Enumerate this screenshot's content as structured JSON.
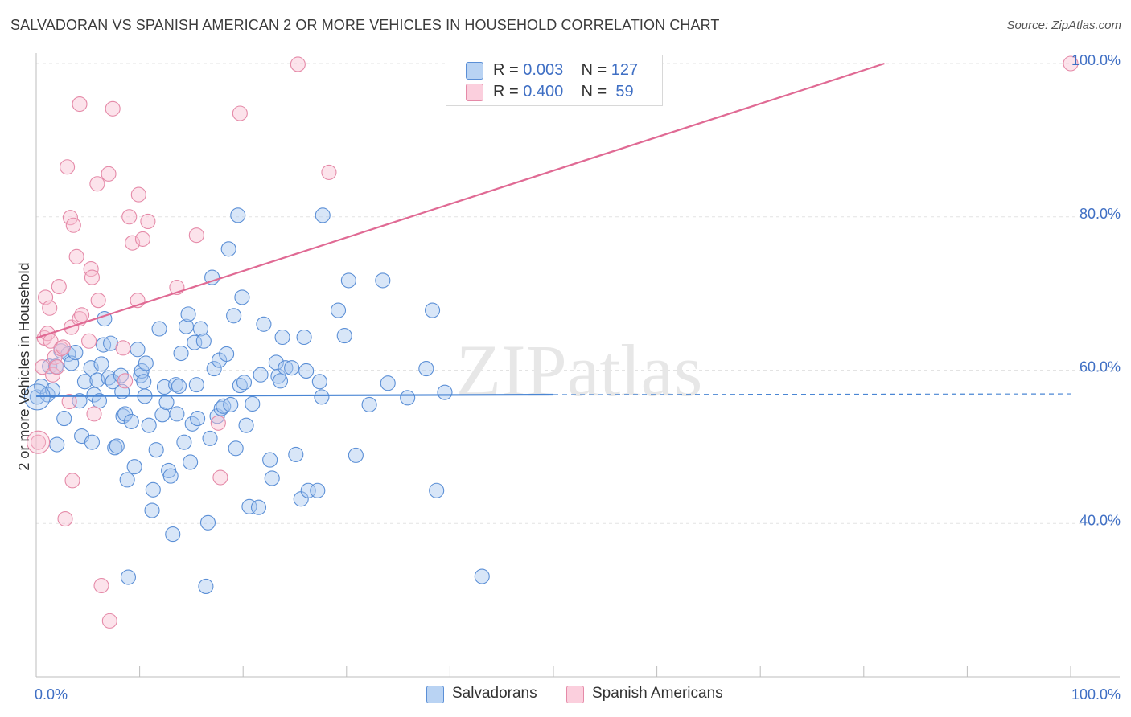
{
  "title": "SALVADORAN VS SPANISH AMERICAN 2 OR MORE VEHICLES IN HOUSEHOLD CORRELATION CHART",
  "source": "Source: ZipAtlas.com",
  "watermark": "ZIPatlas",
  "legend": {
    "rows": [
      {
        "r_label": "R =",
        "r_value": "0.003",
        "n_label": "N =",
        "n_value": "127",
        "color": "#a8c8f0",
        "edge": "#5b8fd6"
      },
      {
        "r_label": "R =",
        "r_value": "0.400",
        "n_label": "N =",
        "n_value": "59",
        "color": "#f8c0d2",
        "edge": "#e58aa8"
      }
    ]
  },
  "bottom_legend": [
    {
      "label": "Salvadorans",
      "color": "#a8c8f0",
      "edge": "#5b8fd6"
    },
    {
      "label": "Spanish Americans",
      "color": "#f8c0d2",
      "edge": "#e58aa8"
    }
  ],
  "chart_data": {
    "type": "scatter",
    "title": "SALVADORAN VS SPANISH AMERICAN 2 OR MORE VEHICLES IN HOUSEHOLD CORRELATION CHART",
    "xlabel": "",
    "ylabel": "2 or more Vehicles in Household",
    "xlim": [
      0,
      100
    ],
    "ylim": [
      20,
      100
    ],
    "x_tick_labels": [
      "0.0%",
      "100.0%"
    ],
    "y_tick_labels": [
      "40.0%",
      "60.0%",
      "80.0%",
      "100.0%"
    ],
    "y_ticks": [
      40,
      60,
      80,
      100
    ],
    "grid": true,
    "colors": {
      "blue": "#4a86d4",
      "pink": "#e06a94"
    },
    "series": [
      {
        "name": "Salvadorans",
        "points": [
          [
            0.1,
            56.5
          ],
          [
            0.5,
            57.9
          ],
          [
            1.1,
            56.8
          ],
          [
            1.3,
            60.5
          ],
          [
            1.6,
            57.4
          ],
          [
            1.9,
            60.5
          ],
          [
            2.0,
            50.3
          ],
          [
            2.4,
            62.5
          ],
          [
            2.7,
            53.7
          ],
          [
            3.1,
            62.1
          ],
          [
            3.4,
            60.9
          ],
          [
            3.8,
            62.3
          ],
          [
            4.2,
            56.0
          ],
          [
            4.4,
            51.4
          ],
          [
            4.7,
            58.5
          ],
          [
            5.3,
            60.3
          ],
          [
            5.4,
            50.6
          ],
          [
            5.6,
            56.8
          ],
          [
            5.9,
            58.7
          ],
          [
            6.1,
            56.0
          ],
          [
            6.3,
            60.8
          ],
          [
            6.5,
            63.3
          ],
          [
            6.6,
            66.7
          ],
          [
            7.0,
            59.0
          ],
          [
            7.2,
            63.5
          ],
          [
            7.4,
            58.5
          ],
          [
            7.6,
            49.9
          ],
          [
            7.8,
            50.1
          ],
          [
            8.2,
            59.3
          ],
          [
            8.3,
            57.2
          ],
          [
            8.4,
            54.0
          ],
          [
            8.6,
            54.3
          ],
          [
            8.8,
            45.7
          ],
          [
            8.9,
            33.0
          ],
          [
            9.2,
            53.3
          ],
          [
            9.5,
            47.4
          ],
          [
            9.8,
            62.7
          ],
          [
            10.1,
            59.3
          ],
          [
            10.2,
            59.9
          ],
          [
            10.4,
            58.5
          ],
          [
            10.5,
            56.6
          ],
          [
            10.6,
            60.9
          ],
          [
            10.9,
            52.8
          ],
          [
            11.2,
            41.7
          ],
          [
            11.3,
            44.4
          ],
          [
            11.6,
            49.6
          ],
          [
            11.9,
            65.4
          ],
          [
            12.2,
            54.2
          ],
          [
            12.4,
            57.8
          ],
          [
            12.6,
            55.8
          ],
          [
            12.8,
            46.9
          ],
          [
            13.0,
            46.2
          ],
          [
            13.2,
            38.6
          ],
          [
            13.5,
            58.1
          ],
          [
            13.6,
            54.3
          ],
          [
            13.8,
            57.9
          ],
          [
            14.0,
            62.2
          ],
          [
            14.3,
            50.6
          ],
          [
            14.5,
            65.7
          ],
          [
            14.7,
            67.3
          ],
          [
            14.9,
            48.0
          ],
          [
            15.1,
            53.0
          ],
          [
            15.3,
            63.6
          ],
          [
            15.5,
            58.1
          ],
          [
            15.6,
            53.7
          ],
          [
            15.9,
            65.4
          ],
          [
            16.2,
            63.8
          ],
          [
            16.4,
            31.8
          ],
          [
            16.6,
            40.1
          ],
          [
            16.8,
            51.1
          ],
          [
            17.0,
            72.1
          ],
          [
            17.2,
            60.2
          ],
          [
            17.5,
            54.0
          ],
          [
            17.7,
            61.3
          ],
          [
            17.9,
            55.0
          ],
          [
            18.1,
            55.3
          ],
          [
            18.4,
            62.1
          ],
          [
            18.6,
            75.8
          ],
          [
            18.8,
            55.5
          ],
          [
            19.1,
            67.1
          ],
          [
            19.3,
            49.8
          ],
          [
            19.5,
            80.2
          ],
          [
            19.7,
            58.0
          ],
          [
            19.9,
            69.5
          ],
          [
            20.1,
            58.4
          ],
          [
            20.3,
            52.8
          ],
          [
            20.6,
            42.2
          ],
          [
            20.9,
            55.6
          ],
          [
            21.5,
            42.1
          ],
          [
            21.7,
            59.4
          ],
          [
            22.0,
            66.0
          ],
          [
            22.6,
            48.3
          ],
          [
            22.8,
            45.9
          ],
          [
            23.2,
            61.0
          ],
          [
            23.4,
            59.2
          ],
          [
            23.6,
            58.6
          ],
          [
            23.8,
            64.3
          ],
          [
            24.1,
            60.3
          ],
          [
            24.7,
            60.3
          ],
          [
            25.1,
            49.0
          ],
          [
            25.6,
            43.2
          ],
          [
            25.9,
            64.3
          ],
          [
            26.1,
            59.9
          ],
          [
            26.3,
            44.3
          ],
          [
            27.2,
            44.3
          ],
          [
            27.4,
            58.5
          ],
          [
            27.6,
            56.5
          ],
          [
            27.7,
            80.2
          ],
          [
            29.2,
            67.8
          ],
          [
            29.8,
            64.5
          ],
          [
            30.2,
            71.7
          ],
          [
            30.9,
            48.9
          ],
          [
            32.2,
            55.5
          ],
          [
            33.5,
            71.7
          ],
          [
            34.0,
            58.3
          ],
          [
            35.9,
            56.4
          ],
          [
            37.7,
            60.2
          ],
          [
            38.3,
            67.8
          ],
          [
            38.7,
            44.3
          ],
          [
            39.5,
            57.1
          ],
          [
            43.1,
            33.1
          ]
        ],
        "trend": {
          "x": [
            0,
            50
          ],
          "y": [
            56.6,
            56.8
          ],
          "dashed_to": [
            100,
            56.9
          ]
        }
      },
      {
        "name": "Spanish Americans",
        "points": [
          [
            0.2,
            50.6
          ],
          [
            0.6,
            60.4
          ],
          [
            0.8,
            64.2
          ],
          [
            0.9,
            69.5
          ],
          [
            1.1,
            64.8
          ],
          [
            1.3,
            68.1
          ],
          [
            1.4,
            63.8
          ],
          [
            1.6,
            59.4
          ],
          [
            1.8,
            61.7
          ],
          [
            2.0,
            60.4
          ],
          [
            2.2,
            70.9
          ],
          [
            2.4,
            62.8
          ],
          [
            2.6,
            63.0
          ],
          [
            2.8,
            40.6
          ],
          [
            3.0,
            86.5
          ],
          [
            3.2,
            55.9
          ],
          [
            3.4,
            65.6
          ],
          [
            3.3,
            79.9
          ],
          [
            3.5,
            45.6
          ],
          [
            3.6,
            78.9
          ],
          [
            3.9,
            74.8
          ],
          [
            4.2,
            66.7
          ],
          [
            4.4,
            67.2
          ],
          [
            4.2,
            94.7
          ],
          [
            5.1,
            63.8
          ],
          [
            5.3,
            73.2
          ],
          [
            5.4,
            72.1
          ],
          [
            5.6,
            54.3
          ],
          [
            5.9,
            84.3
          ],
          [
            6.0,
            69.1
          ],
          [
            6.3,
            31.9
          ],
          [
            7.0,
            85.6
          ],
          [
            7.1,
            27.3
          ],
          [
            7.4,
            94.1
          ],
          [
            8.4,
            62.9
          ],
          [
            8.6,
            58.6
          ],
          [
            9.0,
            80.0
          ],
          [
            9.3,
            76.6
          ],
          [
            9.8,
            69.1
          ],
          [
            9.9,
            82.9
          ],
          [
            10.3,
            77.1
          ],
          [
            10.8,
            79.4
          ],
          [
            13.6,
            70.8
          ],
          [
            15.5,
            77.6
          ],
          [
            17.6,
            53.1
          ],
          [
            17.8,
            46.0
          ],
          [
            19.7,
            93.5
          ],
          [
            25.3,
            99.9
          ],
          [
            28.3,
            85.8
          ],
          [
            100.0,
            100.0
          ]
        ],
        "trend": {
          "x": [
            0,
            82
          ],
          "y": [
            64.2,
            100.0
          ]
        }
      }
    ]
  }
}
